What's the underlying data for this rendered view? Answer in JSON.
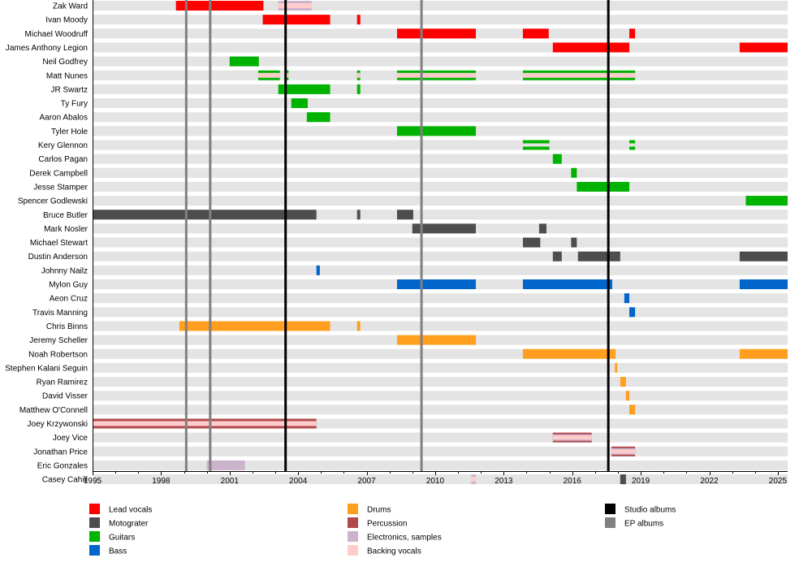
{
  "chart_data": {
    "type": "timeline",
    "xlim": [
      1995,
      2025.43
    ],
    "x_ticks": [
      1995,
      1998,
      2001,
      2004,
      2007,
      2010,
      2013,
      2016,
      2019,
      2022,
      2025
    ],
    "minor_ticks_every_year": true,
    "colors": {
      "Lead vocals": "#ff0000",
      "Motograter": "#4d4d4d",
      "Guitars": "#00b300",
      "Bass": "#0066cc",
      "Drums": "#ff9e1f",
      "Percussion": "#b04a4a",
      "Electronics, samples": "#ccb3cc",
      "Backing vocals": "#ffcccc",
      "Studio albums": "#000000",
      "EP albums": "#808080",
      "row": "#e4e4e4"
    },
    "members": [
      {
        "name": "Zak Ward",
        "bars": [
          {
            "start": 1998.65,
            "end": 2002.48,
            "roles": [
              "Lead vocals"
            ]
          },
          {
            "start": 2003.13,
            "end": 2004.59,
            "roles": [
              "Electronics, samples",
              "Backing vocals"
            ]
          }
        ]
      },
      {
        "name": "Ivan Moody",
        "bars": [
          {
            "start": 2002.45,
            "end": 2005.4,
            "roles": [
              "Lead vocals"
            ]
          },
          {
            "start": 2006.58,
            "end": 2006.72,
            "roles": [
              "Lead vocals"
            ]
          }
        ]
      },
      {
        "name": "Michael Woodruff",
        "bars": [
          {
            "start": 2008.33,
            "end": 2011.78,
            "roles": [
              "Lead vocals"
            ]
          },
          {
            "start": 2013.84,
            "end": 2014.97,
            "roles": [
              "Lead vocals"
            ]
          },
          {
            "start": 2018.5,
            "end": 2018.75,
            "roles": [
              "Lead vocals"
            ]
          }
        ]
      },
      {
        "name": "James Anthony Legion",
        "bars": [
          {
            "start": 2015.15,
            "end": 2018.5,
            "roles": [
              "Lead vocals"
            ]
          },
          {
            "start": 2023.33,
            "end": 2025.43,
            "roles": [
              "Lead vocals"
            ]
          }
        ]
      },
      {
        "name": "Neil Godfrey",
        "bars": [
          {
            "start": 2001.0,
            "end": 2002.28,
            "roles": [
              "Guitars"
            ]
          }
        ]
      },
      {
        "name": "Matt Nunes",
        "bars": [
          {
            "start": 2002.25,
            "end": 2003.2,
            "roles": [
              "Guitars",
              "Backing vocals"
            ]
          },
          {
            "start": 2003.42,
            "end": 2003.58,
            "roles": [
              "Guitars",
              "Backing vocals"
            ]
          },
          {
            "start": 2006.58,
            "end": 2006.72,
            "roles": [
              "Guitars",
              "Backing vocals"
            ]
          },
          {
            "start": 2008.33,
            "end": 2011.78,
            "roles": [
              "Guitars",
              "Backing vocals"
            ]
          },
          {
            "start": 2013.84,
            "end": 2018.75,
            "roles": [
              "Guitars",
              "Backing vocals"
            ]
          }
        ]
      },
      {
        "name": "JR Swartz",
        "bars": [
          {
            "start": 2003.13,
            "end": 2005.4,
            "roles": [
              "Guitars"
            ]
          },
          {
            "start": 2006.58,
            "end": 2006.72,
            "roles": [
              "Guitars"
            ]
          }
        ]
      },
      {
        "name": "Ty Fury",
        "bars": [
          {
            "start": 2003.7,
            "end": 2004.42,
            "roles": [
              "Guitars"
            ]
          }
        ]
      },
      {
        "name": "Aaron Abalos",
        "bars": [
          {
            "start": 2004.38,
            "end": 2005.4,
            "roles": [
              "Guitars"
            ]
          }
        ]
      },
      {
        "name": "Tyler Hole",
        "bars": [
          {
            "start": 2008.33,
            "end": 2011.78,
            "roles": [
              "Guitars"
            ]
          }
        ]
      },
      {
        "name": "Kery Glennon",
        "bars": [
          {
            "start": 2013.84,
            "end": 2015.0,
            "roles": [
              "Guitars"
            ],
            "split": true
          },
          {
            "start": 2018.5,
            "end": 2018.75,
            "roles": [
              "Guitars"
            ],
            "split": true
          }
        ]
      },
      {
        "name": "Carlos Pagan",
        "bars": [
          {
            "start": 2015.15,
            "end": 2015.54,
            "roles": [
              "Guitars"
            ]
          }
        ]
      },
      {
        "name": "Derek Campbell",
        "bars": [
          {
            "start": 2015.95,
            "end": 2016.2,
            "roles": [
              "Guitars"
            ]
          }
        ]
      },
      {
        "name": "Jesse Stamper",
        "bars": [
          {
            "start": 2016.2,
            "end": 2018.5,
            "roles": [
              "Guitars"
            ]
          }
        ]
      },
      {
        "name": "Spencer Godlewski",
        "bars": [
          {
            "start": 2023.6,
            "end": 2025.43,
            "roles": [
              "Guitars"
            ]
          }
        ]
      },
      {
        "name": "Bruce Butler",
        "bars": [
          {
            "start": 1995.0,
            "end": 2004.8,
            "roles": [
              "Motograter"
            ]
          },
          {
            "start": 2006.58,
            "end": 2006.72,
            "roles": [
              "Motograter"
            ]
          },
          {
            "start": 2008.33,
            "end": 2009.04,
            "roles": [
              "Motograter"
            ]
          }
        ]
      },
      {
        "name": "Mark Nosler",
        "bars": [
          {
            "start": 2009.0,
            "end": 2011.78,
            "roles": [
              "Motograter"
            ]
          },
          {
            "start": 2014.55,
            "end": 2014.87,
            "roles": [
              "Motograter"
            ]
          }
        ]
      },
      {
        "name": "Michael Stewart",
        "bars": [
          {
            "start": 2013.84,
            "end": 2014.6,
            "roles": [
              "Motograter"
            ]
          },
          {
            "start": 2015.95,
            "end": 2016.2,
            "roles": [
              "Motograter"
            ]
          }
        ]
      },
      {
        "name": "Dustin Anderson",
        "bars": [
          {
            "start": 2015.15,
            "end": 2015.54,
            "roles": [
              "Motograter"
            ]
          },
          {
            "start": 2016.25,
            "end": 2018.1,
            "roles": [
              "Motograter"
            ]
          },
          {
            "start": 2023.33,
            "end": 2025.43,
            "roles": [
              "Motograter"
            ]
          }
        ]
      },
      {
        "name": "Johnny Nailz",
        "bars": [
          {
            "start": 2004.8,
            "end": 2004.95,
            "roles": [
              "Bass"
            ]
          }
        ]
      },
      {
        "name": "Mylon Guy",
        "bars": [
          {
            "start": 2008.33,
            "end": 2011.78,
            "roles": [
              "Bass"
            ]
          },
          {
            "start": 2013.84,
            "end": 2017.75,
            "roles": [
              "Bass"
            ]
          },
          {
            "start": 2023.33,
            "end": 2025.43,
            "roles": [
              "Bass"
            ]
          }
        ]
      },
      {
        "name": "Aeon Cruz",
        "bars": [
          {
            "start": 2018.28,
            "end": 2018.5,
            "roles": [
              "Bass"
            ]
          }
        ]
      },
      {
        "name": "Travis Manning",
        "bars": [
          {
            "start": 2018.5,
            "end": 2018.75,
            "roles": [
              "Bass"
            ]
          }
        ]
      },
      {
        "name": "Chris Binns",
        "bars": [
          {
            "start": 1998.8,
            "end": 2005.4,
            "roles": [
              "Drums"
            ]
          },
          {
            "start": 2006.58,
            "end": 2006.72,
            "roles": [
              "Drums"
            ]
          }
        ]
      },
      {
        "name": "Jeremy Scheller",
        "bars": [
          {
            "start": 2008.33,
            "end": 2011.78,
            "roles": [
              "Drums"
            ]
          }
        ]
      },
      {
        "name": "Noah Robertson",
        "bars": [
          {
            "start": 2013.84,
            "end": 2017.9,
            "roles": [
              "Drums"
            ]
          },
          {
            "start": 2023.33,
            "end": 2025.43,
            "roles": [
              "Drums"
            ]
          }
        ]
      },
      {
        "name": "Stephen Kalani Seguin",
        "bars": [
          {
            "start": 2017.87,
            "end": 2017.97,
            "roles": [
              "Drums"
            ]
          }
        ]
      },
      {
        "name": "Ryan Ramirez",
        "bars": [
          {
            "start": 2018.1,
            "end": 2018.35,
            "roles": [
              "Drums"
            ]
          }
        ]
      },
      {
        "name": "David Visser",
        "bars": [
          {
            "start": 2018.35,
            "end": 2018.5,
            "roles": [
              "Drums"
            ]
          }
        ]
      },
      {
        "name": "Matthew O'Connell",
        "bars": [
          {
            "start": 2018.5,
            "end": 2018.75,
            "roles": [
              "Drums"
            ]
          }
        ]
      },
      {
        "name": "Joey Krzywonski",
        "bars": [
          {
            "start": 1995.0,
            "end": 2004.8,
            "roles": [
              "Percussion",
              "Backing vocals"
            ]
          }
        ]
      },
      {
        "name": "Joey Vice",
        "bars": [
          {
            "start": 2015.15,
            "end": 2016.85,
            "roles": [
              "Percussion",
              "Electronics, samples",
              "Backing vocals"
            ]
          }
        ]
      },
      {
        "name": "Jonathan Price",
        "bars": [
          {
            "start": 2017.72,
            "end": 2018.75,
            "roles": [
              "Percussion",
              "Electronics, samples",
              "Backing vocals"
            ]
          }
        ]
      },
      {
        "name": "Eric Gonzales",
        "bars": [
          {
            "start": 2000.0,
            "end": 2001.67,
            "roles": [
              "Electronics, samples"
            ]
          }
        ]
      },
      {
        "name": "Casey Cahill",
        "bars": [
          {
            "start": 2011.58,
            "end": 2011.78,
            "roles": [
              "Electronics, samples",
              "Backing vocals"
            ]
          },
          {
            "start": 2018.1,
            "end": 2018.35,
            "roles": [
              "Motograter"
            ]
          }
        ]
      }
    ],
    "events": [
      {
        "type": "EP albums",
        "date": 1999.1
      },
      {
        "type": "EP albums",
        "date": 2000.15
      },
      {
        "type": "EP albums",
        "date": 2009.4
      },
      {
        "type": "Studio albums",
        "date": 2003.45
      },
      {
        "type": "Studio albums",
        "date": 2017.58
      }
    ],
    "legend": [
      [
        "Lead vocals",
        "Motograter",
        "Guitars",
        "Bass"
      ],
      [
        "Drums",
        "Percussion",
        "Electronics, samples",
        "Backing vocals"
      ],
      [
        "Studio albums",
        "EP albums"
      ]
    ]
  }
}
